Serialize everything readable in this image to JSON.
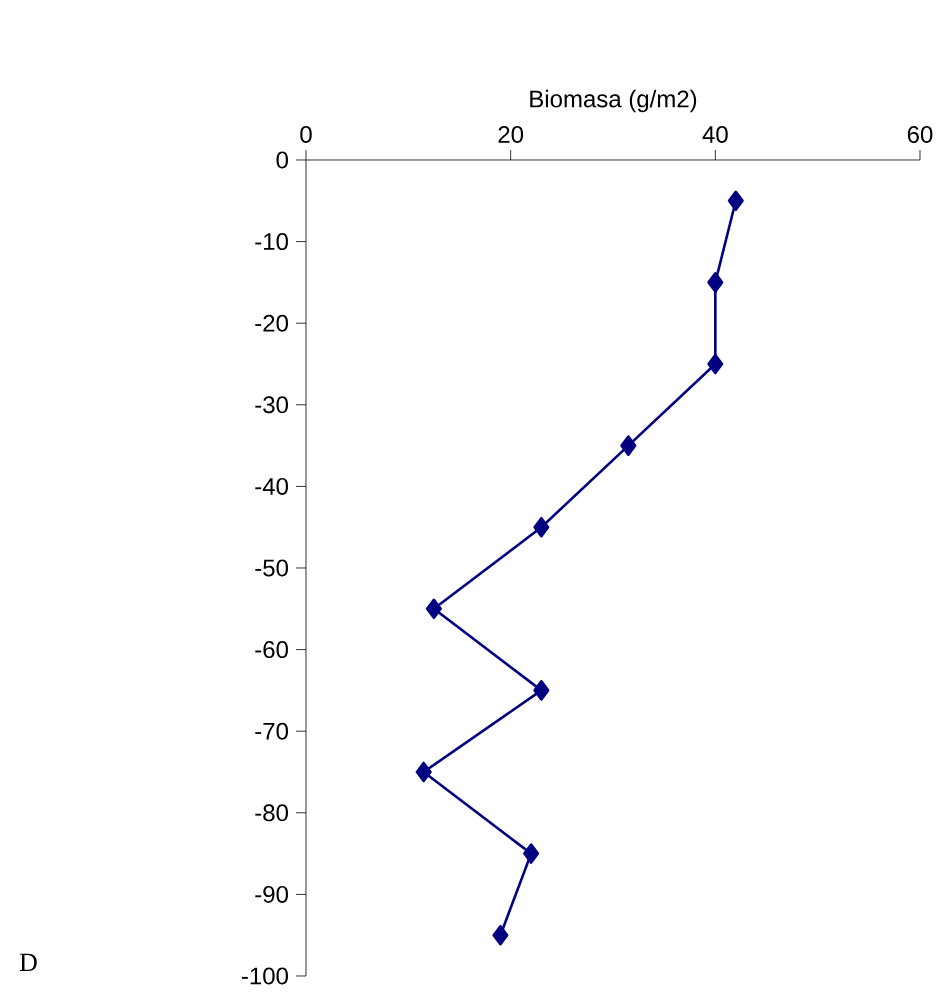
{
  "chart_data": {
    "type": "line",
    "xlabel": "Biomasa (g/m2)",
    "series": [
      {
        "color": "#000080",
        "x": [
          42,
          40,
          40,
          31.5,
          23,
          12.5,
          23,
          11.5,
          22,
          19
        ],
        "values": [
          -5,
          -15,
          -25,
          -35,
          -45,
          -55,
          -65,
          -75,
          -85,
          -95
        ]
      }
    ],
    "xlim": [
      0,
      60
    ],
    "xticks": [
      0,
      20,
      40,
      60
    ],
    "ylim": [
      -100,
      0
    ],
    "yticks": [
      0,
      -10,
      -20,
      -30,
      -40,
      -50,
      -60,
      -70,
      -80,
      -90,
      -100
    ],
    "marker": "diamond",
    "line_style": "solid",
    "annotations": [
      "D"
    ]
  }
}
